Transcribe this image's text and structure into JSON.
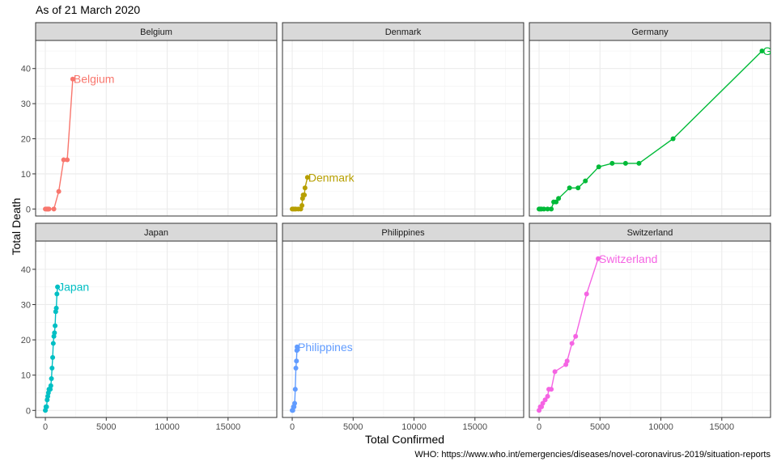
{
  "subtitle": "As of 21 March 2020",
  "caption": "WHO: https://www.who.int/emergencies/diseases/novel-coronavirus-2019/situation-reports",
  "chart_data": {
    "type": "line",
    "subtitle": "As of 21 March 2020",
    "xlabel": "Total Confirmed",
    "ylabel": "Total Death",
    "xlim": [
      -800,
      19000
    ],
    "ylim": [
      -2,
      48
    ],
    "x_ticks": [
      0,
      5000,
      10000,
      15000
    ],
    "y_ticks": [
      0,
      10,
      20,
      30,
      40
    ],
    "grid": true,
    "legend": "none",
    "facets": [
      {
        "name": "Belgium",
        "color": "#F8766D",
        "points": [
          [
            0,
            0
          ],
          [
            100,
            0
          ],
          [
            150,
            0
          ],
          [
            200,
            0
          ],
          [
            250,
            0
          ],
          [
            300,
            0
          ],
          [
            700,
            0
          ],
          [
            1100,
            5
          ],
          [
            1500,
            14
          ],
          [
            1800,
            14
          ],
          [
            2250,
            37
          ]
        ]
      },
      {
        "name": "Denmark",
        "color": "#B79F00",
        "points": [
          [
            0,
            0
          ],
          [
            100,
            0
          ],
          [
            200,
            0
          ],
          [
            300,
            0
          ],
          [
            500,
            0
          ],
          [
            700,
            0
          ],
          [
            800,
            1
          ],
          [
            850,
            3
          ],
          [
            900,
            4
          ],
          [
            1000,
            4
          ],
          [
            1050,
            6
          ],
          [
            1250,
            9
          ]
        ]
      },
      {
        "name": "Germany",
        "color": "#00BA38",
        "points": [
          [
            0,
            0
          ],
          [
            100,
            0
          ],
          [
            200,
            0
          ],
          [
            400,
            0
          ],
          [
            700,
            0
          ],
          [
            1000,
            0
          ],
          [
            1200,
            2
          ],
          [
            1400,
            2
          ],
          [
            1600,
            3
          ],
          [
            2500,
            6
          ],
          [
            3200,
            6
          ],
          [
            3800,
            8
          ],
          [
            4900,
            12
          ],
          [
            6000,
            13
          ],
          [
            7100,
            13
          ],
          [
            8200,
            13
          ],
          [
            11000,
            20
          ],
          [
            18300,
            45
          ]
        ]
      },
      {
        "name": "Japan",
        "color": "#00BFC4",
        "points": [
          [
            0,
            0
          ],
          [
            50,
            1
          ],
          [
            100,
            1
          ],
          [
            150,
            3
          ],
          [
            200,
            4
          ],
          [
            250,
            5
          ],
          [
            300,
            6
          ],
          [
            400,
            6
          ],
          [
            450,
            7
          ],
          [
            500,
            9
          ],
          [
            550,
            12
          ],
          [
            600,
            15
          ],
          [
            650,
            19
          ],
          [
            700,
            21
          ],
          [
            750,
            22
          ],
          [
            800,
            24
          ],
          [
            850,
            28
          ],
          [
            900,
            29
          ],
          [
            950,
            33
          ],
          [
            1000,
            35
          ]
        ]
      },
      {
        "name": "Philippines",
        "color": "#619CFF",
        "points": [
          [
            0,
            0
          ],
          [
            50,
            0
          ],
          [
            100,
            1
          ],
          [
            150,
            1
          ],
          [
            200,
            2
          ],
          [
            250,
            6
          ],
          [
            300,
            12
          ],
          [
            350,
            14
          ],
          [
            380,
            17
          ],
          [
            400,
            18
          ]
        ]
      },
      {
        "name": "Switzerland",
        "color": "#F564E3",
        "points": [
          [
            0,
            0
          ],
          [
            100,
            1
          ],
          [
            200,
            1
          ],
          [
            300,
            2
          ],
          [
            500,
            3
          ],
          [
            700,
            4
          ],
          [
            800,
            6
          ],
          [
            1000,
            6
          ],
          [
            1300,
            11
          ],
          [
            2200,
            13
          ],
          [
            2300,
            14
          ],
          [
            2700,
            19
          ],
          [
            3000,
            21
          ],
          [
            3900,
            33
          ],
          [
            4850,
            43
          ]
        ]
      }
    ]
  }
}
